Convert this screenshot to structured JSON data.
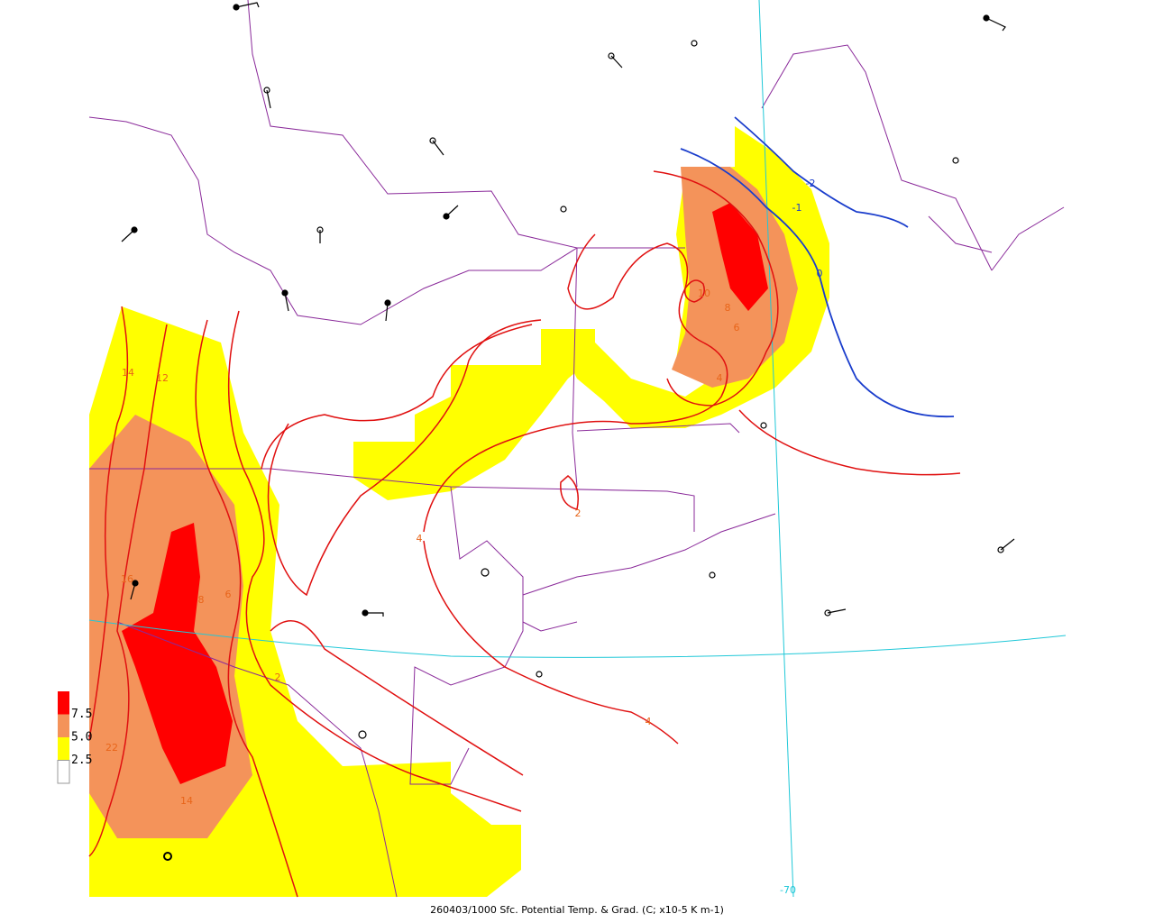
{
  "caption": "260403/1000 Sfc. Potential Temp. & Grad. (C; x10-5 K m-1)",
  "legend": [
    {
      "label": "7.5",
      "color": "#ff0000"
    },
    {
      "label": "5.0",
      "color": "#f4935a"
    },
    {
      "label": "2.5",
      "color": "#ffff00"
    },
    {
      "label": "",
      "color": "#ffffff"
    }
  ],
  "contour_labels": [
    "14",
    "12",
    "16",
    "8",
    "6",
    "2",
    "4",
    "22",
    "14",
    "10",
    "8",
    "6",
    "4",
    "2",
    "4",
    "-2",
    "-1",
    "0",
    "-70"
  ]
}
